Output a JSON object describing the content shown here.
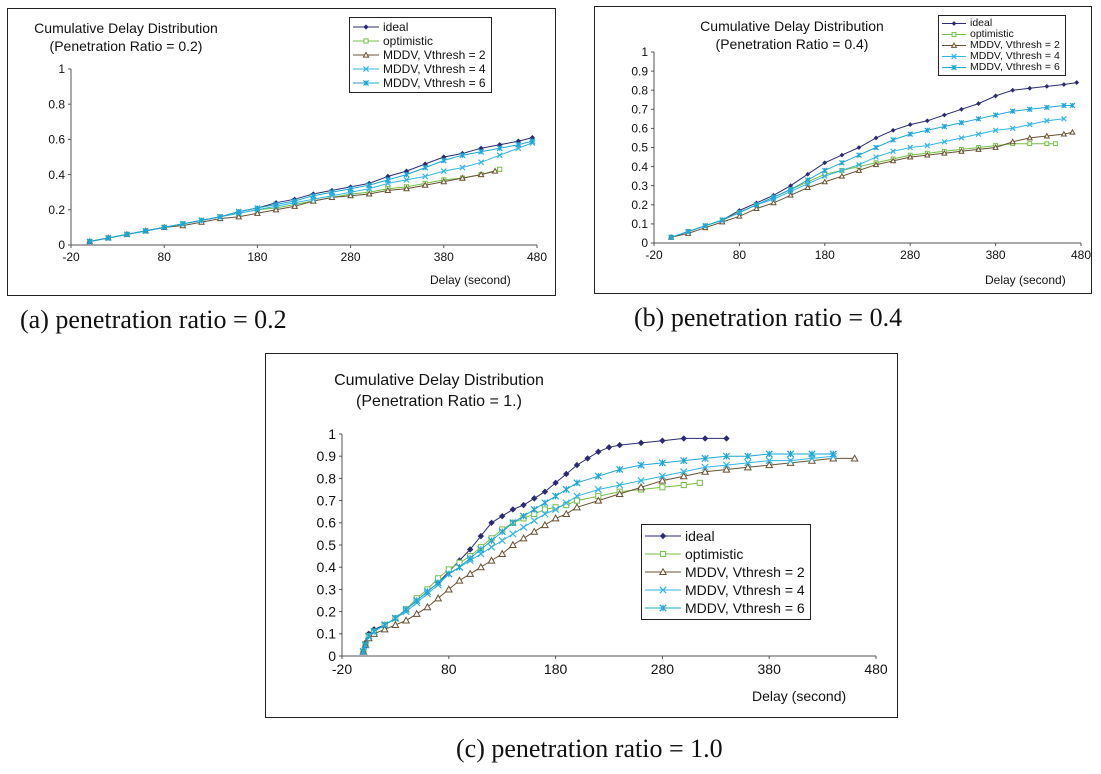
{
  "colors": {
    "ideal": "#2b2b73",
    "optimistic": "#74bf44",
    "mddv2": "#6a5132",
    "mddv4": "#33b5e5",
    "mddv6": "#1da6d6"
  },
  "captions": {
    "a": "(a) penetration ratio = 0.2",
    "b": "(b) penetration ratio = 0.4",
    "c": "(c) penetration ratio = 1.0"
  },
  "chart_data": [
    {
      "id": "a",
      "type": "line",
      "title_line1": "Cumulative Delay Distribution",
      "title_line2": "(Penetration Ratio = 0.2)",
      "xlabel": "Delay (second)",
      "ylabel": "",
      "xlim": [
        -20,
        480
      ],
      "ylim": [
        0,
        1
      ],
      "xticks": [
        "-20",
        "80",
        "180",
        "280",
        "380",
        "480"
      ],
      "yticks": [
        "0",
        "0.2",
        "0.4",
        "0.6",
        "0.8",
        "1"
      ],
      "grid": false,
      "legend_position": "top-right",
      "series": [
        {
          "name": "ideal",
          "marker": "diamond",
          "x": [
            0,
            20,
            40,
            60,
            80,
            100,
            120,
            140,
            160,
            180,
            200,
            220,
            240,
            260,
            280,
            300,
            320,
            340,
            360,
            380,
            400,
            420,
            440,
            460,
            475
          ],
          "y": [
            0.02,
            0.04,
            0.06,
            0.08,
            0.1,
            0.12,
            0.14,
            0.16,
            0.19,
            0.21,
            0.24,
            0.26,
            0.29,
            0.31,
            0.33,
            0.35,
            0.39,
            0.42,
            0.46,
            0.5,
            0.52,
            0.55,
            0.57,
            0.59,
            0.61
          ]
        },
        {
          "name": "optimistic",
          "marker": "square",
          "x": [
            0,
            20,
            40,
            60,
            80,
            100,
            120,
            140,
            160,
            180,
            200,
            220,
            240,
            260,
            280,
            300,
            320,
            340,
            360,
            380,
            400,
            420,
            440
          ],
          "y": [
            0.02,
            0.04,
            0.06,
            0.08,
            0.1,
            0.12,
            0.14,
            0.16,
            0.18,
            0.2,
            0.21,
            0.23,
            0.25,
            0.27,
            0.29,
            0.3,
            0.32,
            0.33,
            0.35,
            0.37,
            0.38,
            0.4,
            0.43
          ]
        },
        {
          "name": "MDDV,  Vthresh = 2",
          "marker": "triangle",
          "x": [
            0,
            20,
            40,
            60,
            80,
            100,
            120,
            140,
            160,
            180,
            200,
            220,
            240,
            260,
            280,
            300,
            320,
            340,
            360,
            380,
            400,
            420,
            435
          ],
          "y": [
            0.02,
            0.04,
            0.06,
            0.08,
            0.1,
            0.11,
            0.13,
            0.15,
            0.16,
            0.18,
            0.2,
            0.22,
            0.25,
            0.27,
            0.28,
            0.29,
            0.31,
            0.32,
            0.34,
            0.36,
            0.38,
            0.4,
            0.42
          ]
        },
        {
          "name": "MDDV, Vthresh = 4",
          "marker": "x",
          "x": [
            0,
            20,
            40,
            60,
            80,
            100,
            120,
            140,
            160,
            180,
            200,
            220,
            240,
            260,
            280,
            300,
            320,
            340,
            360,
            380,
            400,
            420,
            440,
            460,
            475
          ],
          "y": [
            0.02,
            0.04,
            0.06,
            0.08,
            0.1,
            0.12,
            0.14,
            0.16,
            0.18,
            0.2,
            0.22,
            0.24,
            0.26,
            0.28,
            0.3,
            0.32,
            0.35,
            0.37,
            0.39,
            0.42,
            0.44,
            0.47,
            0.51,
            0.55,
            0.58
          ]
        },
        {
          "name": "MDDV, Vthresh = 6",
          "marker": "star",
          "x": [
            0,
            20,
            40,
            60,
            80,
            100,
            120,
            140,
            160,
            180,
            200,
            220,
            240,
            260,
            280,
            300,
            320,
            340,
            360,
            380,
            400,
            420,
            440,
            460,
            475
          ],
          "y": [
            0.02,
            0.04,
            0.06,
            0.08,
            0.1,
            0.12,
            0.14,
            0.16,
            0.19,
            0.21,
            0.23,
            0.25,
            0.28,
            0.3,
            0.32,
            0.34,
            0.37,
            0.4,
            0.44,
            0.48,
            0.51,
            0.53,
            0.55,
            0.57,
            0.59
          ]
        }
      ]
    },
    {
      "id": "b",
      "type": "line",
      "title_line1": "Cumulative Delay Distribution",
      "title_line2": "(Penetration Ratio = 0.4)",
      "xlabel": "Delay (second)",
      "ylabel": "",
      "xlim": [
        -20,
        480
      ],
      "ylim": [
        0,
        1
      ],
      "xticks": [
        "-20",
        "80",
        "180",
        "280",
        "380",
        "480"
      ],
      "yticks": [
        "0",
        "0.1",
        "0.2",
        "0.3",
        "0.4",
        "0.5",
        "0.6",
        "0.7",
        "0.8",
        "0.9",
        "1"
      ],
      "grid": false,
      "legend_position": "top-right",
      "series": [
        {
          "name": "ideal",
          "marker": "diamond",
          "x": [
            0,
            20,
            40,
            60,
            80,
            100,
            120,
            140,
            160,
            180,
            200,
            220,
            240,
            260,
            280,
            300,
            320,
            340,
            360,
            380,
            400,
            420,
            440,
            460,
            475
          ],
          "y": [
            0.03,
            0.06,
            0.09,
            0.12,
            0.17,
            0.21,
            0.25,
            0.3,
            0.36,
            0.42,
            0.46,
            0.5,
            0.55,
            0.59,
            0.62,
            0.64,
            0.67,
            0.7,
            0.73,
            0.77,
            0.8,
            0.81,
            0.82,
            0.83,
            0.84
          ]
        },
        {
          "name": "optimistic",
          "marker": "square",
          "x": [
            0,
            20,
            40,
            60,
            80,
            100,
            120,
            140,
            160,
            180,
            200,
            220,
            240,
            260,
            280,
            300,
            320,
            340,
            360,
            380,
            400,
            420,
            440,
            450
          ],
          "y": [
            0.03,
            0.06,
            0.09,
            0.12,
            0.16,
            0.2,
            0.24,
            0.28,
            0.32,
            0.36,
            0.38,
            0.4,
            0.42,
            0.44,
            0.46,
            0.47,
            0.48,
            0.49,
            0.5,
            0.51,
            0.52,
            0.52,
            0.52,
            0.52
          ]
        },
        {
          "name": "MDDV, Vthresh = 2",
          "marker": "triangle",
          "x": [
            0,
            20,
            40,
            60,
            80,
            100,
            120,
            140,
            160,
            180,
            200,
            220,
            240,
            260,
            280,
            300,
            320,
            340,
            360,
            380,
            400,
            420,
            440,
            460,
            470
          ],
          "y": [
            0.03,
            0.05,
            0.08,
            0.11,
            0.14,
            0.18,
            0.21,
            0.25,
            0.29,
            0.32,
            0.35,
            0.38,
            0.41,
            0.43,
            0.45,
            0.46,
            0.47,
            0.48,
            0.49,
            0.5,
            0.53,
            0.55,
            0.56,
            0.57,
            0.58
          ]
        },
        {
          "name": "MDDV, Vthresh = 4",
          "marker": "x",
          "x": [
            0,
            20,
            40,
            60,
            80,
            100,
            120,
            140,
            160,
            180,
            200,
            220,
            240,
            260,
            280,
            300,
            320,
            340,
            360,
            380,
            400,
            420,
            440,
            460
          ],
          "y": [
            0.03,
            0.06,
            0.09,
            0.12,
            0.16,
            0.2,
            0.23,
            0.27,
            0.31,
            0.35,
            0.38,
            0.41,
            0.45,
            0.48,
            0.5,
            0.51,
            0.53,
            0.55,
            0.57,
            0.59,
            0.6,
            0.62,
            0.64,
            0.65
          ]
        },
        {
          "name": "MDDV, Vthresh = 6",
          "marker": "star",
          "x": [
            0,
            20,
            40,
            60,
            80,
            100,
            120,
            140,
            160,
            180,
            200,
            220,
            240,
            260,
            280,
            300,
            320,
            340,
            360,
            380,
            400,
            420,
            440,
            460,
            470
          ],
          "y": [
            0.03,
            0.06,
            0.09,
            0.12,
            0.16,
            0.2,
            0.24,
            0.28,
            0.33,
            0.38,
            0.42,
            0.46,
            0.5,
            0.54,
            0.57,
            0.59,
            0.61,
            0.63,
            0.65,
            0.67,
            0.69,
            0.7,
            0.71,
            0.72,
            0.72
          ]
        }
      ]
    },
    {
      "id": "c",
      "type": "line",
      "title_line1": "Cumulative Delay Distribution",
      "title_line2": "(Penetration Ratio = 1.)",
      "xlabel": "Delay (second)",
      "ylabel": "",
      "xlim": [
        -20,
        480
      ],
      "ylim": [
        0,
        1
      ],
      "xticks": [
        "-20",
        "80",
        "180",
        "280",
        "380",
        "480"
      ],
      "yticks": [
        "0",
        "0.1",
        "0.2",
        "0.3",
        "0.4",
        "0.5",
        "0.6",
        "0.7",
        "0.8",
        "0.9",
        "1"
      ],
      "grid": false,
      "legend_position": "center-right",
      "series": [
        {
          "name": "ideal",
          "marker": "diamond",
          "x": [
            0,
            2,
            5,
            10,
            20,
            30,
            40,
            50,
            60,
            70,
            80,
            90,
            100,
            110,
            120,
            130,
            140,
            150,
            160,
            170,
            180,
            190,
            200,
            210,
            220,
            230,
            240,
            260,
            280,
            300,
            320,
            340
          ],
          "y": [
            0.02,
            0.06,
            0.1,
            0.12,
            0.14,
            0.17,
            0.21,
            0.25,
            0.29,
            0.33,
            0.38,
            0.43,
            0.48,
            0.54,
            0.6,
            0.63,
            0.66,
            0.68,
            0.71,
            0.74,
            0.78,
            0.82,
            0.86,
            0.89,
            0.92,
            0.94,
            0.95,
            0.96,
            0.97,
            0.98,
            0.98,
            0.98
          ]
        },
        {
          "name": "optimistic",
          "marker": "square",
          "x": [
            0,
            2,
            5,
            10,
            20,
            30,
            40,
            50,
            60,
            70,
            80,
            90,
            100,
            110,
            120,
            130,
            140,
            150,
            160,
            170,
            180,
            190,
            200,
            220,
            240,
            260,
            280,
            300,
            315
          ],
          "y": [
            0.02,
            0.05,
            0.09,
            0.11,
            0.14,
            0.17,
            0.21,
            0.26,
            0.3,
            0.35,
            0.39,
            0.42,
            0.45,
            0.49,
            0.53,
            0.57,
            0.6,
            0.62,
            0.64,
            0.66,
            0.67,
            0.68,
            0.7,
            0.72,
            0.74,
            0.75,
            0.76,
            0.77,
            0.78
          ]
        },
        {
          "name": "MDDV, Vthresh = 2",
          "marker": "triangle",
          "x": [
            0,
            2,
            5,
            10,
            20,
            30,
            40,
            50,
            60,
            70,
            80,
            90,
            100,
            110,
            120,
            130,
            140,
            150,
            160,
            170,
            180,
            190,
            200,
            220,
            240,
            260,
            280,
            300,
            320,
            340,
            360,
            380,
            400,
            420,
            440,
            460
          ],
          "y": [
            0.02,
            0.05,
            0.08,
            0.1,
            0.12,
            0.14,
            0.16,
            0.19,
            0.22,
            0.26,
            0.3,
            0.34,
            0.37,
            0.4,
            0.43,
            0.46,
            0.5,
            0.53,
            0.56,
            0.59,
            0.62,
            0.64,
            0.67,
            0.7,
            0.73,
            0.76,
            0.79,
            0.81,
            0.83,
            0.84,
            0.85,
            0.86,
            0.87,
            0.88,
            0.89,
            0.89
          ]
        },
        {
          "name": "MDDV, Vthresh = 4",
          "marker": "x",
          "x": [
            0,
            2,
            5,
            10,
            20,
            30,
            40,
            50,
            60,
            70,
            80,
            90,
            100,
            110,
            120,
            130,
            140,
            150,
            160,
            170,
            180,
            190,
            200,
            220,
            240,
            260,
            280,
            300,
            320,
            340,
            360,
            380,
            400,
            420,
            440
          ],
          "y": [
            0.02,
            0.05,
            0.09,
            0.11,
            0.14,
            0.17,
            0.2,
            0.24,
            0.28,
            0.32,
            0.37,
            0.4,
            0.43,
            0.46,
            0.49,
            0.52,
            0.55,
            0.58,
            0.61,
            0.64,
            0.66,
            0.69,
            0.72,
            0.75,
            0.77,
            0.79,
            0.81,
            0.83,
            0.85,
            0.86,
            0.87,
            0.88,
            0.88,
            0.89,
            0.9
          ]
        },
        {
          "name": "MDDV, Vthresh = 6",
          "marker": "star",
          "x": [
            0,
            2,
            5,
            10,
            20,
            30,
            40,
            50,
            60,
            70,
            80,
            90,
            100,
            110,
            120,
            130,
            140,
            150,
            160,
            170,
            180,
            190,
            200,
            220,
            240,
            260,
            280,
            300,
            320,
            340,
            360,
            380,
            400,
            420,
            440
          ],
          "y": [
            0.02,
            0.05,
            0.09,
            0.11,
            0.14,
            0.17,
            0.21,
            0.25,
            0.29,
            0.33,
            0.37,
            0.4,
            0.44,
            0.48,
            0.52,
            0.56,
            0.6,
            0.63,
            0.66,
            0.69,
            0.72,
            0.75,
            0.78,
            0.81,
            0.84,
            0.86,
            0.87,
            0.88,
            0.89,
            0.9,
            0.9,
            0.91,
            0.91,
            0.91,
            0.91
          ]
        }
      ]
    }
  ]
}
